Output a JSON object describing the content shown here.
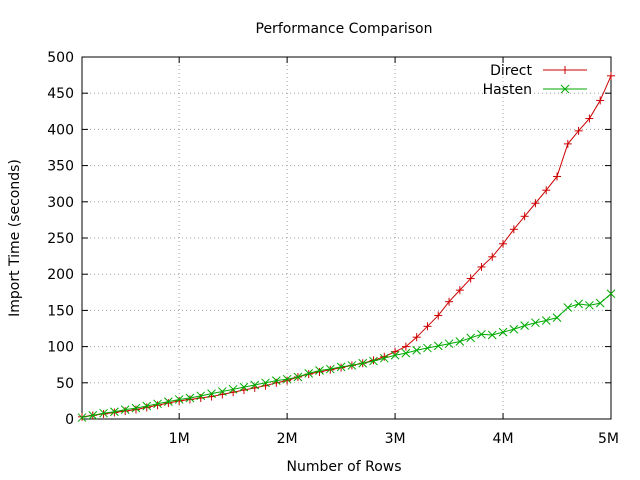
{
  "chart_data": {
    "type": "line",
    "title": "Performance Comparison",
    "xlabel": "Number of Rows",
    "ylabel": "Import Time (seconds)",
    "xlim": [
      100000,
      5000000
    ],
    "ylim": [
      0,
      500
    ],
    "x_ticks": [
      {
        "value": 1000000,
        "label": "1M"
      },
      {
        "value": 2000000,
        "label": "2M"
      },
      {
        "value": 3000000,
        "label": "3M"
      },
      {
        "value": 4000000,
        "label": "4M"
      },
      {
        "value": 5000000,
        "label": "5M"
      }
    ],
    "y_ticks": [
      {
        "value": 0,
        "label": "0"
      },
      {
        "value": 50,
        "label": "50"
      },
      {
        "value": 100,
        "label": "100"
      },
      {
        "value": 150,
        "label": "150"
      },
      {
        "value": 200,
        "label": "200"
      },
      {
        "value": 250,
        "label": "250"
      },
      {
        "value": 300,
        "label": "300"
      },
      {
        "value": 350,
        "label": "350"
      },
      {
        "value": 400,
        "label": "400"
      },
      {
        "value": 450,
        "label": "450"
      },
      {
        "value": 500,
        "label": "500"
      }
    ],
    "grid": true,
    "legend_position": "top-right",
    "x": [
      100000,
      200000,
      300000,
      400000,
      500000,
      600000,
      700000,
      800000,
      900000,
      1000000,
      1100000,
      1200000,
      1300000,
      1400000,
      1500000,
      1600000,
      1700000,
      1800000,
      1900000,
      2000000,
      2100000,
      2200000,
      2300000,
      2400000,
      2500000,
      2600000,
      2700000,
      2800000,
      2900000,
      3000000,
      3100000,
      3200000,
      3300000,
      3400000,
      3500000,
      3600000,
      3700000,
      3800000,
      3900000,
      4000000,
      4100000,
      4200000,
      4300000,
      4400000,
      4500000,
      4600000,
      4700000,
      4800000,
      4900000,
      5000000
    ],
    "series": [
      {
        "name": "Direct",
        "color": "#cc0000",
        "marker": "plus",
        "values": [
          3,
          5,
          7,
          9,
          11,
          13,
          16,
          19,
          22,
          25,
          27,
          29,
          31,
          34,
          37,
          40,
          43,
          46,
          50,
          53,
          58,
          62,
          65,
          68,
          71,
          74,
          77,
          81,
          86,
          93,
          100,
          113,
          128,
          143,
          162,
          178,
          194,
          210,
          224,
          242,
          262,
          280,
          298,
          316,
          335,
          380,
          398,
          415,
          440,
          474
        ]
      },
      {
        "name": "Hasten",
        "color": "#00aa00",
        "marker": "x",
        "values": [
          2,
          5,
          8,
          10,
          13,
          15,
          18,
          21,
          24,
          27,
          29,
          32,
          35,
          38,
          41,
          44,
          47,
          50,
          53,
          55,
          58,
          63,
          67,
          69,
          72,
          74,
          77,
          80,
          84,
          88,
          91,
          95,
          98,
          101,
          104,
          107,
          112,
          117,
          116,
          120,
          124,
          129,
          133,
          136,
          140,
          154,
          159,
          157,
          160,
          173
        ]
      }
    ]
  }
}
